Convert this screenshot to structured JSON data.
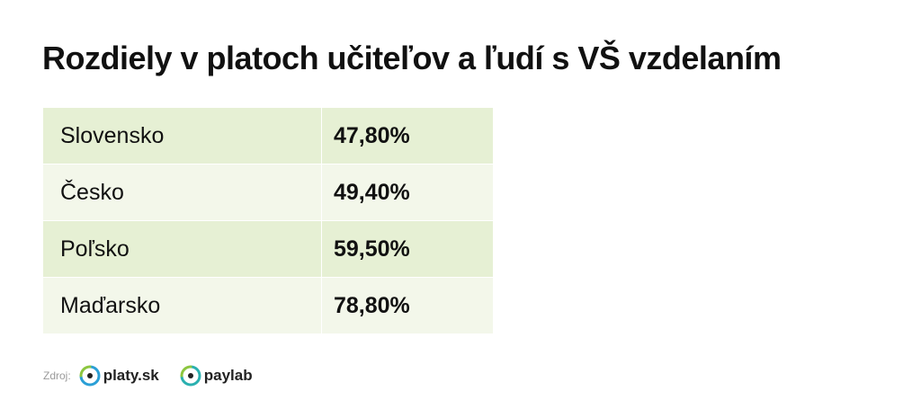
{
  "title": "Rozdiely v platoch učiteľov a ľudí s VŠ vzdelaním",
  "table": {
    "rows": [
      [
        "Slovensko",
        "47,80%"
      ],
      [
        "Česko",
        "49,40%"
      ],
      [
        "Poľsko",
        "59,50%"
      ],
      [
        "Maďarsko",
        "78,80%"
      ]
    ]
  },
  "footer": {
    "source_label": "Zdroj:",
    "logos": [
      "platy.sk",
      "paylab"
    ]
  }
}
